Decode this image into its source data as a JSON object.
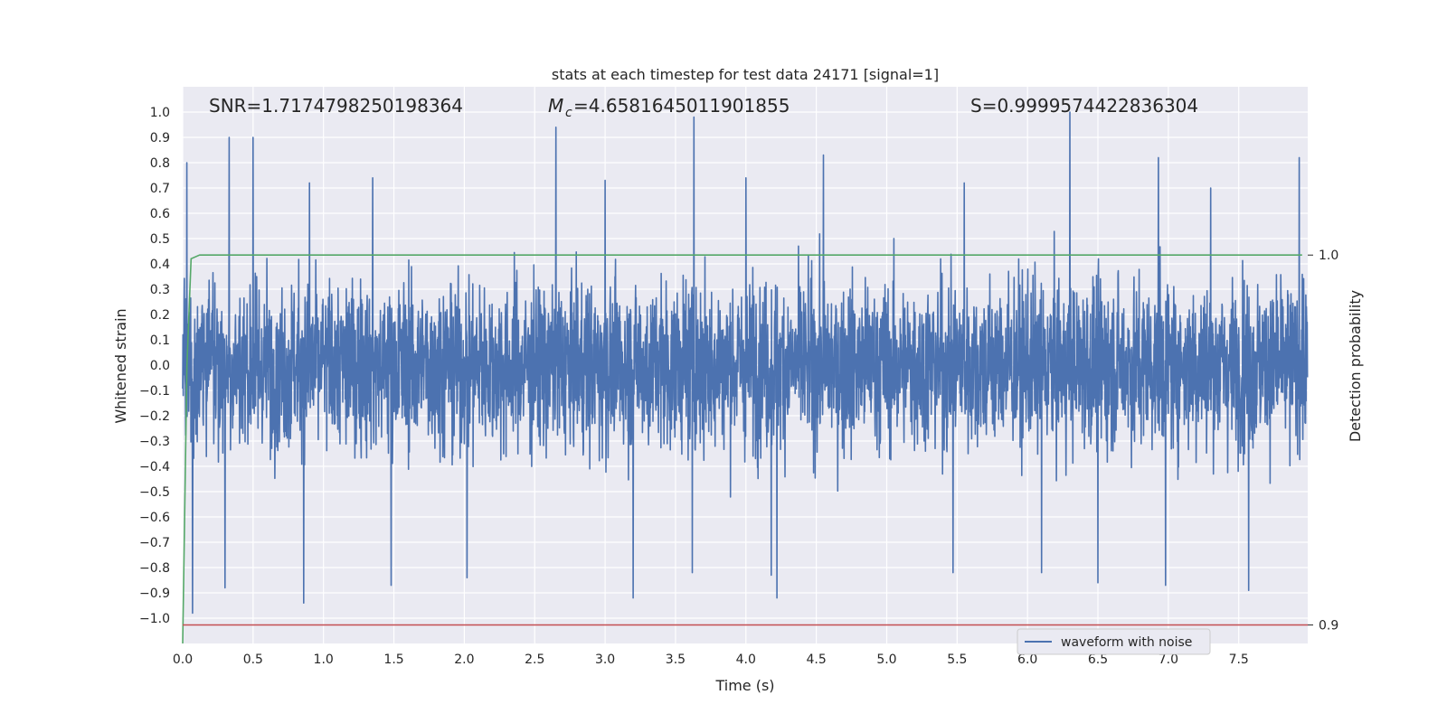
{
  "chart_data": {
    "type": "line",
    "title": "stats at each timestep for test data 24171 [signal=1]",
    "xlabel": "Time (s)",
    "ylabel": "Whitened strain",
    "y2label": "Detection probability",
    "xlim": [
      0.0,
      7.99
    ],
    "ylim": [
      -1.1,
      1.1
    ],
    "y2lim": [
      0.895,
      1.0455
    ],
    "x_ticks": [
      "0.0",
      "0.5",
      "1.0",
      "1.5",
      "2.0",
      "2.5",
      "3.0",
      "3.5",
      "4.0",
      "4.5",
      "5.0",
      "5.5",
      "6.0",
      "6.5",
      "7.0",
      "7.5"
    ],
    "y_ticks": [
      "1.0",
      "0.9",
      "0.8",
      "0.7",
      "0.6",
      "0.5",
      "0.4",
      "0.3",
      "0.2",
      "0.1",
      "0.0",
      "−0.1",
      "−0.2",
      "−0.3",
      "−0.4",
      "−0.5",
      "−0.6",
      "−0.7",
      "−0.8",
      "−0.9",
      "−1.0"
    ],
    "y2_ticks": [
      "1.0",
      "0.9"
    ],
    "annotations": {
      "snr": "SNR=1.7174798250198364",
      "mc_value": "=4.6581645011901855",
      "s": "S=0.9999574422836304"
    },
    "grid": true,
    "legend": {
      "placement": "lower-right",
      "entries": [
        "waveform with noise"
      ]
    },
    "series": [
      {
        "name": "waveform with noise",
        "axis": "left",
        "color": "#4c72b0",
        "description": "dense noisy waveform sampled across 0 to 7.99 s",
        "sample_rate_hz": 512,
        "typical_band": [
          -0.45,
          0.45
        ],
        "positive_spikes": [
          [
            0.03,
            0.8
          ],
          [
            0.33,
            0.9
          ],
          [
            0.5,
            0.9
          ],
          [
            0.9,
            0.72
          ],
          [
            1.35,
            0.74
          ],
          [
            2.65,
            0.94
          ],
          [
            3.0,
            0.73
          ],
          [
            3.63,
            0.98
          ],
          [
            4.0,
            0.74
          ],
          [
            4.55,
            0.83
          ],
          [
            5.55,
            0.72
          ],
          [
            6.1,
            0.85
          ],
          [
            6.3,
            1.0
          ],
          [
            6.93,
            0.82
          ],
          [
            7.3,
            0.7
          ],
          [
            7.93,
            0.82
          ]
        ],
        "negative_spikes": [
          [
            0.07,
            -0.98
          ],
          [
            0.3,
            -0.88
          ],
          [
            0.86,
            -0.94
          ],
          [
            1.48,
            -0.87
          ],
          [
            2.02,
            -0.84
          ],
          [
            3.2,
            -0.92
          ],
          [
            3.62,
            -0.82
          ],
          [
            4.18,
            -0.83
          ],
          [
            4.22,
            -0.92
          ],
          [
            5.47,
            -0.82
          ],
          [
            6.1,
            -0.82
          ],
          [
            6.5,
            -0.86
          ],
          [
            6.98,
            -0.87
          ],
          [
            7.57,
            -0.89
          ]
        ]
      },
      {
        "axis": "right",
        "color": "#55a868",
        "description": "detection probability rising to 1.0 at the start",
        "points": [
          [
            0.0,
            0.895
          ],
          [
            0.03,
            0.97
          ],
          [
            0.06,
            0.999
          ],
          [
            0.12,
            1.0
          ],
          [
            7.95,
            1.0
          ]
        ]
      },
      {
        "axis": "right",
        "color": "#c44e52",
        "description": "threshold level",
        "points": [
          [
            0.0,
            0.9
          ],
          [
            7.99,
            0.9
          ]
        ]
      }
    ],
    "colors": {
      "plot_bg": "#eaeaf2",
      "grid": "#ffffff",
      "text": "#262626"
    }
  }
}
